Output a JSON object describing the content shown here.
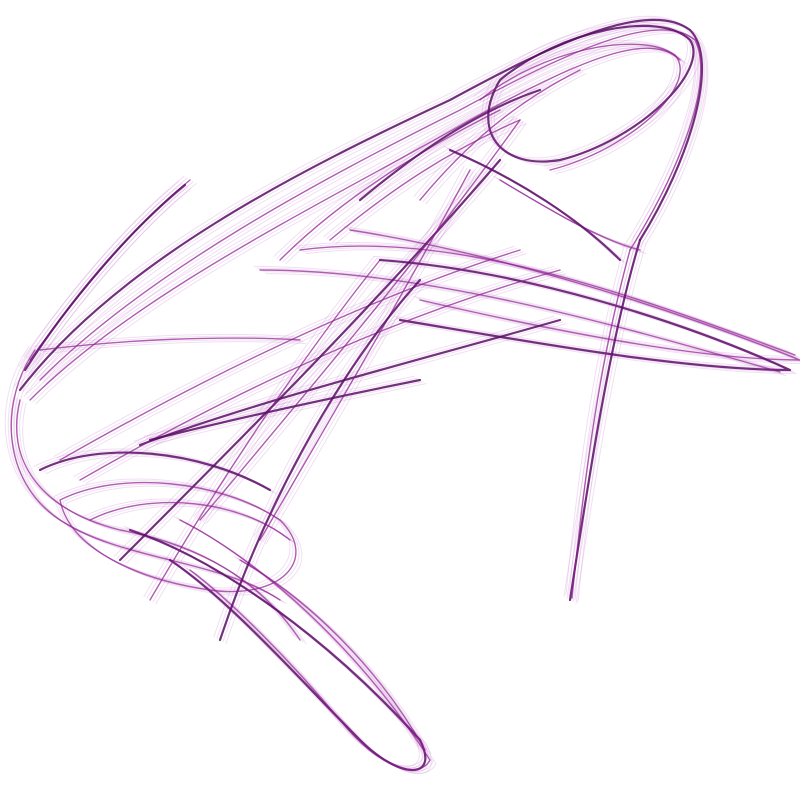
{
  "artwork": {
    "subject": "strange-attractor",
    "background_color": "#ffffff",
    "stroke_color": "#8b1a8f",
    "stroke_color_dark": "#5a0d66",
    "stroke_color_light": "#c77fd0"
  }
}
